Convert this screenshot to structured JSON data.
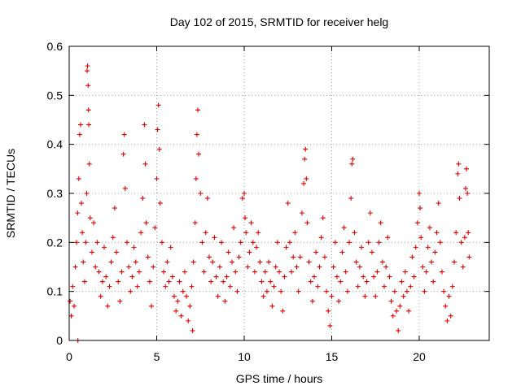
{
  "chart_data": {
    "type": "scatter",
    "title": "Day 102 of 2015, SRMTID for receiver helg",
    "xlabel": "GPS time / hours",
    "ylabel": "SRMTID / TECUs",
    "xlim": [
      0,
      24
    ],
    "ylim": [
      0,
      0.6
    ],
    "xticks": [
      0,
      5,
      10,
      15,
      20
    ],
    "yticks": [
      0,
      0.1,
      0.2,
      0.3,
      0.4,
      0.5,
      0.6
    ],
    "xtick_labels": [
      "0",
      "5",
      "10",
      "15",
      "20"
    ],
    "ytick_labels": [
      "0",
      "0.1",
      "0.2",
      "0.3",
      "0.4",
      "0.5",
      "0.6"
    ],
    "grid": true,
    "marker": "+",
    "color": "#e00000",
    "series": [
      {
        "name": "SRMTID",
        "points": [
          [
            0.05,
            0.08
          ],
          [
            0.12,
            0.05
          ],
          [
            0.2,
            0.11
          ],
          [
            0.28,
            0.07
          ],
          [
            0.35,
            0.15
          ],
          [
            0.42,
            0.2
          ],
          [
            0.48,
            0.26
          ],
          [
            0.5,
            0.0
          ],
          [
            0.55,
            0.33
          ],
          [
            0.6,
            0.42
          ],
          [
            0.65,
            0.44
          ],
          [
            0.7,
            0.28
          ],
          [
            0.75,
            0.22
          ],
          [
            0.8,
            0.16
          ],
          [
            0.88,
            0.12
          ],
          [
            0.95,
            0.2
          ],
          [
            1.0,
            0.3
          ],
          [
            1.02,
            0.55
          ],
          [
            1.05,
            0.56
          ],
          [
            1.08,
            0.52
          ],
          [
            1.1,
            0.47
          ],
          [
            1.12,
            0.44
          ],
          [
            1.15,
            0.36
          ],
          [
            1.2,
            0.25
          ],
          [
            1.3,
            0.18
          ],
          [
            1.4,
            0.24
          ],
          [
            1.5,
            0.15
          ],
          [
            1.6,
            0.2
          ],
          [
            1.7,
            0.14
          ],
          [
            1.8,
            0.09
          ],
          [
            1.9,
            0.12
          ],
          [
            2.0,
            0.19
          ],
          [
            2.1,
            0.13
          ],
          [
            2.2,
            0.07
          ],
          [
            2.3,
            0.11
          ],
          [
            2.4,
            0.16
          ],
          [
            2.5,
            0.21
          ],
          [
            2.6,
            0.27
          ],
          [
            2.7,
            0.18
          ],
          [
            2.8,
            0.12
          ],
          [
            2.9,
            0.08
          ],
          [
            3.0,
            0.14
          ],
          [
            3.1,
            0.38
          ],
          [
            3.15,
            0.42
          ],
          [
            3.2,
            0.31
          ],
          [
            3.3,
            0.2
          ],
          [
            3.4,
            0.15
          ],
          [
            3.5,
            0.1
          ],
          [
            3.6,
            0.13
          ],
          [
            3.7,
            0.19
          ],
          [
            3.8,
            0.16
          ],
          [
            3.9,
            0.11
          ],
          [
            4.0,
            0.14
          ],
          [
            4.1,
            0.22
          ],
          [
            4.2,
            0.29
          ],
          [
            4.3,
            0.44
          ],
          [
            4.35,
            0.36
          ],
          [
            4.4,
            0.24
          ],
          [
            4.5,
            0.17
          ],
          [
            4.6,
            0.12
          ],
          [
            4.7,
            0.07
          ],
          [
            4.8,
            0.15
          ],
          [
            4.9,
            0.23
          ],
          [
            5.0,
            0.33
          ],
          [
            5.05,
            0.43
          ],
          [
            5.1,
            0.48
          ],
          [
            5.15,
            0.39
          ],
          [
            5.2,
            0.28
          ],
          [
            5.3,
            0.2
          ],
          [
            5.4,
            0.14
          ],
          [
            5.5,
            0.11
          ],
          [
            5.6,
            0.16
          ],
          [
            5.7,
            0.12
          ],
          [
            5.8,
            0.19
          ],
          [
            5.9,
            0.13
          ],
          [
            6.0,
            0.09
          ],
          [
            6.1,
            0.06
          ],
          [
            6.2,
            0.08
          ],
          [
            6.3,
            0.12
          ],
          [
            6.4,
            0.05
          ],
          [
            6.5,
            0.1
          ],
          [
            6.6,
            0.14
          ],
          [
            6.7,
            0.09
          ],
          [
            6.8,
            0.04
          ],
          [
            6.9,
            0.07
          ],
          [
            7.0,
            0.11
          ],
          [
            7.05,
            0.02
          ],
          [
            7.1,
            0.16
          ],
          [
            7.2,
            0.24
          ],
          [
            7.25,
            0.33
          ],
          [
            7.3,
            0.42
          ],
          [
            7.35,
            0.47
          ],
          [
            7.4,
            0.38
          ],
          [
            7.5,
            0.3
          ],
          [
            7.6,
            0.2
          ],
          [
            7.7,
            0.14
          ],
          [
            7.8,
            0.22
          ],
          [
            7.9,
            0.29
          ],
          [
            8.0,
            0.17
          ],
          [
            8.1,
            0.12
          ],
          [
            8.2,
            0.16
          ],
          [
            8.3,
            0.21
          ],
          [
            8.4,
            0.13
          ],
          [
            8.5,
            0.09
          ],
          [
            8.6,
            0.15
          ],
          [
            8.7,
            0.2
          ],
          [
            8.8,
            0.12
          ],
          [
            8.9,
            0.08
          ],
          [
            9.0,
            0.13
          ],
          [
            9.1,
            0.18
          ],
          [
            9.2,
            0.11
          ],
          [
            9.3,
            0.16
          ],
          [
            9.4,
            0.23
          ],
          [
            9.5,
            0.14
          ],
          [
            9.6,
            0.1
          ],
          [
            9.7,
            0.17
          ],
          [
            9.8,
            0.2
          ],
          [
            9.9,
            0.29
          ],
          [
            10.0,
            0.3
          ],
          [
            10.05,
            0.25
          ],
          [
            10.1,
            0.22
          ],
          [
            10.2,
            0.15
          ],
          [
            10.3,
            0.18
          ],
          [
            10.4,
            0.24
          ],
          [
            10.5,
            0.2
          ],
          [
            10.6,
            0.14
          ],
          [
            10.7,
            0.19
          ],
          [
            10.8,
            0.22
          ],
          [
            10.9,
            0.16
          ],
          [
            11.0,
            0.12
          ],
          [
            11.1,
            0.09
          ],
          [
            11.2,
            0.14
          ],
          [
            11.3,
            0.1
          ],
          [
            11.4,
            0.16
          ],
          [
            11.5,
            0.12
          ],
          [
            11.6,
            0.07
          ],
          [
            11.7,
            0.11
          ],
          [
            11.8,
            0.15
          ],
          [
            11.9,
            0.2
          ],
          [
            12.0,
            0.14
          ],
          [
            12.1,
            0.1
          ],
          [
            12.2,
            0.06
          ],
          [
            12.3,
            0.13
          ],
          [
            12.4,
            0.19
          ],
          [
            12.5,
            0.28
          ],
          [
            12.6,
            0.2
          ],
          [
            12.7,
            0.14
          ],
          [
            12.8,
            0.17
          ],
          [
            12.9,
            0.22
          ],
          [
            13.0,
            0.15
          ],
          [
            13.1,
            0.1
          ],
          [
            13.2,
            0.17
          ],
          [
            13.3,
            0.26
          ],
          [
            13.4,
            0.32
          ],
          [
            13.45,
            0.37
          ],
          [
            13.5,
            0.39
          ],
          [
            13.55,
            0.33
          ],
          [
            13.6,
            0.24
          ],
          [
            13.7,
            0.16
          ],
          [
            13.8,
            0.12
          ],
          [
            13.9,
            0.08
          ],
          [
            14.0,
            0.13
          ],
          [
            14.1,
            0.18
          ],
          [
            14.2,
            0.11
          ],
          [
            14.3,
            0.15
          ],
          [
            14.4,
            0.21
          ],
          [
            14.5,
            0.25
          ],
          [
            14.6,
            0.17
          ],
          [
            14.7,
            0.1
          ],
          [
            14.8,
            0.06
          ],
          [
            14.9,
            0.03
          ],
          [
            15.0,
            0.09
          ],
          [
            15.1,
            0.15
          ],
          [
            15.2,
            0.2
          ],
          [
            15.3,
            0.13
          ],
          [
            15.4,
            0.08
          ],
          [
            15.5,
            0.12
          ],
          [
            15.6,
            0.18
          ],
          [
            15.7,
            0.23
          ],
          [
            15.8,
            0.14
          ],
          [
            15.9,
            0.1
          ],
          [
            16.0,
            0.2
          ],
          [
            16.1,
            0.29
          ],
          [
            16.15,
            0.36
          ],
          [
            16.2,
            0.37
          ],
          [
            16.3,
            0.22
          ],
          [
            16.4,
            0.16
          ],
          [
            16.5,
            0.11
          ],
          [
            16.6,
            0.15
          ],
          [
            16.7,
            0.19
          ],
          [
            16.8,
            0.13
          ],
          [
            16.9,
            0.09
          ],
          [
            17.0,
            0.12
          ],
          [
            17.1,
            0.2
          ],
          [
            17.2,
            0.26
          ],
          [
            17.3,
            0.18
          ],
          [
            17.4,
            0.13
          ],
          [
            17.5,
            0.09
          ],
          [
            17.6,
            0.14
          ],
          [
            17.7,
            0.2
          ],
          [
            17.8,
            0.24
          ],
          [
            17.9,
            0.16
          ],
          [
            18.0,
            0.11
          ],
          [
            18.1,
            0.15
          ],
          [
            18.2,
            0.21
          ],
          [
            18.3,
            0.13
          ],
          [
            18.4,
            0.08
          ],
          [
            18.5,
            0.05
          ],
          [
            18.6,
            0.1
          ],
          [
            18.7,
            0.06
          ],
          [
            18.8,
            0.02
          ],
          [
            18.9,
            0.07
          ],
          [
            19.0,
            0.12
          ],
          [
            19.1,
            0.09
          ],
          [
            19.2,
            0.14
          ],
          [
            19.3,
            0.1
          ],
          [
            19.4,
            0.06
          ],
          [
            19.5,
            0.11
          ],
          [
            19.6,
            0.17
          ],
          [
            19.7,
            0.13
          ],
          [
            19.8,
            0.19
          ],
          [
            19.9,
            0.24
          ],
          [
            20.0,
            0.3
          ],
          [
            20.05,
            0.27
          ],
          [
            20.1,
            0.21
          ],
          [
            20.2,
            0.15
          ],
          [
            20.3,
            0.1
          ],
          [
            20.4,
            0.14
          ],
          [
            20.5,
            0.19
          ],
          [
            20.6,
            0.23
          ],
          [
            20.7,
            0.16
          ],
          [
            20.8,
            0.12
          ],
          [
            20.9,
            0.18
          ],
          [
            21.0,
            0.22
          ],
          [
            21.1,
            0.28
          ],
          [
            21.2,
            0.2
          ],
          [
            21.3,
            0.14
          ],
          [
            21.4,
            0.1
          ],
          [
            21.5,
            0.07
          ],
          [
            21.6,
            0.04
          ],
          [
            21.7,
            0.09
          ],
          [
            21.8,
            0.05
          ],
          [
            21.9,
            0.11
          ],
          [
            22.0,
            0.16
          ],
          [
            22.1,
            0.22
          ],
          [
            22.2,
            0.34
          ],
          [
            22.25,
            0.36
          ],
          [
            22.3,
            0.29
          ],
          [
            22.4,
            0.2
          ],
          [
            22.5,
            0.15
          ],
          [
            22.6,
            0.21
          ],
          [
            22.65,
            0.31
          ],
          [
            22.7,
            0.35
          ],
          [
            22.75,
            0.3
          ],
          [
            22.8,
            0.22
          ],
          [
            22.85,
            0.17
          ]
        ]
      }
    ]
  }
}
